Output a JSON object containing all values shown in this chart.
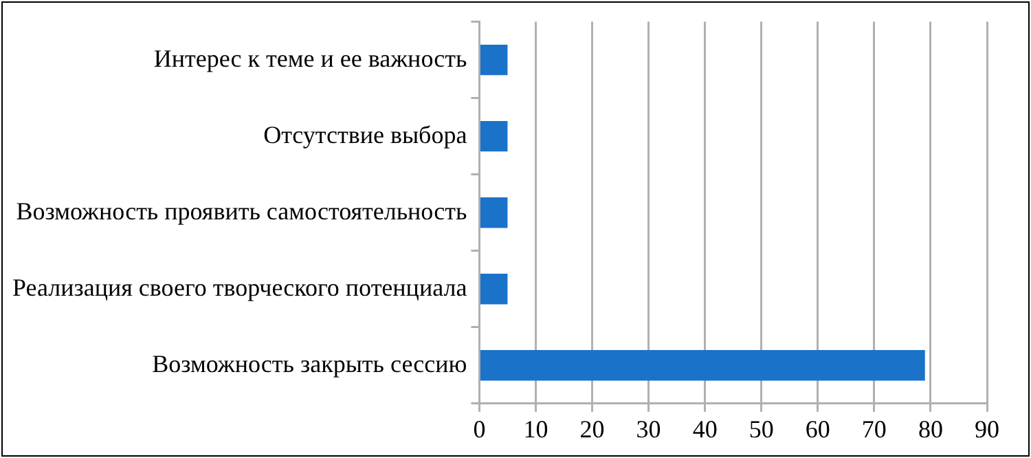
{
  "chart_data": {
    "type": "bar",
    "orientation": "horizontal",
    "categories": [
      "Интерес к теме и ее важность",
      "Отсутствие выбора",
      "Возможность проявить самостоятельность",
      "Реализация своего творческого потенциала",
      "Возможность закрыть сессию"
    ],
    "values": [
      5,
      5,
      5,
      5,
      79
    ],
    "color": "#1b72c9",
    "xlim": [
      0,
      90
    ],
    "xticks": [
      0,
      10,
      20,
      30,
      40,
      50,
      60,
      70,
      80,
      90
    ],
    "grid": "x",
    "legend": false
  }
}
